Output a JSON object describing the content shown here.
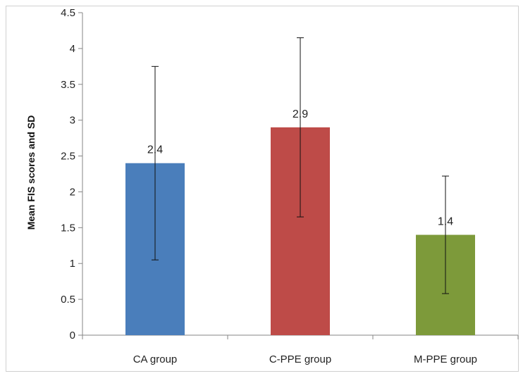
{
  "chart_data": {
    "type": "bar",
    "title": "",
    "xlabel": "",
    "ylabel": "Mean FIS scores and SD",
    "ylim": [
      0,
      4.5
    ],
    "yticks": [
      "0",
      "0.5",
      "1",
      "1.5",
      "2",
      "2.5",
      "3",
      "3.5",
      "4",
      "4.5"
    ],
    "grid": false,
    "legend": "none",
    "categories": [
      "CA group",
      "C-PPE group",
      "M-PPE group"
    ],
    "values": [
      2.4,
      2.9,
      1.4
    ],
    "data_labels": [
      "2.4",
      "2.9",
      "1.4"
    ],
    "error": [
      1.35,
      1.25,
      0.82
    ],
    "colors": [
      "#4a7ebb",
      "#be4b48",
      "#7d9a3a"
    ]
  }
}
